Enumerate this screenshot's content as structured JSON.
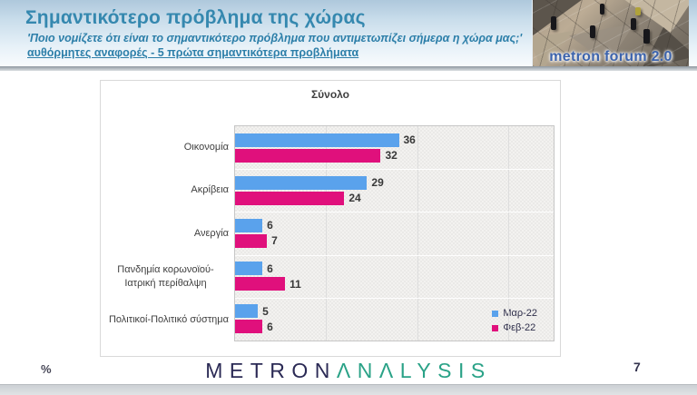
{
  "header": {
    "title": "Σημαντικότερο πρόβλημα της χώρας",
    "subtitle": "'Ποιο νομίζετε ότι είναι το σημαντικότερο πρόβλημα που αντιμετωπίζει σήμερα η χώρα μας;'",
    "note": "αυθόρμητες αναφορές - 5 πρώτα σημαντικότερα προβλήματα",
    "logo_text": "metron forum 2.0"
  },
  "chart_data": {
    "type": "bar",
    "orientation": "horizontal",
    "title": "Σύνολο",
    "categories": [
      "Οικονομία",
      "Ακρίβεια",
      "Ανεργία",
      "Πανδημία κορωνοϊού-Ιατρική περίθαλψη",
      "Πολιτικοί-Πολιτικό σύστημα"
    ],
    "series": [
      {
        "name": "Μαρ-22",
        "color": "#5AA2EC",
        "values": [
          36,
          29,
          6,
          6,
          5
        ]
      },
      {
        "name": "Φεβ-22",
        "color": "#E0107C",
        "values": [
          32,
          24,
          7,
          11,
          6
        ]
      }
    ],
    "xlim": [
      0,
      70
    ],
    "grid_step": 20,
    "grid": true,
    "legend_position": "inside-bottom-right",
    "value_labels": true
  },
  "footer": {
    "logo_metron": "METRON",
    "logo_analysis": "ΛNΛLYSIS",
    "percent_label": "%",
    "page_number": "7"
  },
  "colors": {
    "title_teal": "#3588af",
    "bar_blue": "#5AA2EC",
    "bar_pink": "#E0107C",
    "logo_navy": "#2b2a55",
    "logo_teal": "#2aa287"
  }
}
